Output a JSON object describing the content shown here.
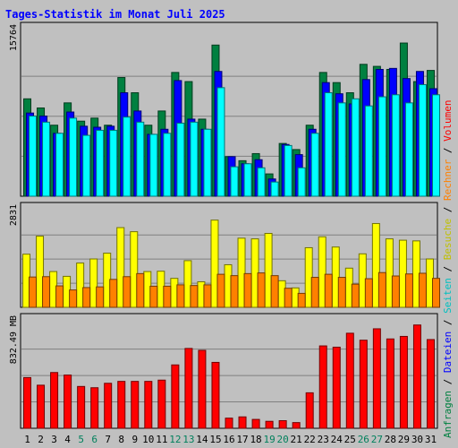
{
  "chart_data": {
    "type": "bar",
    "title": "Tages-Statistik im Monat Juli 2025",
    "days": [
      "1",
      "2",
      "3",
      "4",
      "5",
      "6",
      "7",
      "8",
      "9",
      "10",
      "11",
      "12",
      "13",
      "14",
      "15",
      "16",
      "17",
      "18",
      "19",
      "20",
      "21",
      "22",
      "23",
      "24",
      "25",
      "26",
      "27",
      "28",
      "29",
      "30",
      "31"
    ],
    "weekend_days": [
      "5",
      "6",
      "12",
      "13",
      "19",
      "20",
      "26",
      "27"
    ],
    "colors": {
      "anfragen": "#008040",
      "dateien": "#0000ff",
      "seiten": "#00ffff",
      "besuche": "#ffff00",
      "rechner": "#ff8000",
      "volumen": "#ff0000",
      "title": "#0000ff",
      "weekend": "#00805c"
    },
    "panels": [
      {
        "max_label": "15764",
        "ymax": 15764,
        "series": [
          {
            "name": "Anfragen",
            "values": [
              9600,
              8700,
              7000,
              9200,
              7400,
              7700,
              7000,
              11700,
              10200,
              7000,
              8400,
              12200,
              11300,
              7600,
              14900,
              3900,
              3500,
              4200,
              2200,
              5200,
              4600,
              7000,
              12200,
              11200,
              10200,
              13000,
              12800,
              12500,
              15100,
              11300,
              12400
            ]
          },
          {
            "name": "Dateien",
            "values": [
              8200,
              7900,
              6200,
              8300,
              6900,
              6800,
              6900,
              10200,
              8400,
              6100,
              6600,
              11400,
              7600,
              6600,
              12300,
              3900,
              3200,
              3600,
              1700,
              5100,
              4100,
              6600,
              11200,
              10100,
              9100,
              11500,
              12500,
              12600,
              11600,
              12300,
              10600
            ]
          },
          {
            "name": "Seiten",
            "values": [
              7900,
              7300,
              6200,
              7700,
              6000,
              6500,
              6500,
              7800,
              7300,
              6100,
              6200,
              7200,
              7300,
              6600,
              10700,
              2900,
              3200,
              2800,
              1400,
              5000,
              2800,
              6200,
              10200,
              9200,
              9600,
              8900,
              9800,
              10000,
              9200,
              11000,
              10000
            ]
          }
        ]
      },
      {
        "max_label": "2831",
        "ymax": 2831,
        "series": [
          {
            "name": "Besuche",
            "values": [
              1560,
              2090,
              1050,
              910,
              1300,
              1420,
              1590,
              2340,
              2220,
              1050,
              1060,
              850,
              1370,
              750,
              2560,
              1250,
              2030,
              2010,
              2170,
              780,
              570,
              1750,
              2070,
              1770,
              1150,
              1570,
              2460,
              2010,
              1970,
              1950,
              1420
            ]
          },
          {
            "name": "Rechner",
            "values": [
              890,
              900,
              630,
              510,
              580,
              600,
              820,
              900,
              990,
              620,
              620,
              660,
              640,
              660,
              970,
              930,
              990,
              1010,
              930,
              560,
              410,
              880,
              970,
              880,
              680,
              840,
              1020,
              920,
              980,
              1000,
              850
            ]
          }
        ]
      },
      {
        "max_label": "832.49 MB",
        "ymax": 832.49,
        "series": [
          {
            "name": "Volumen",
            "values": [
              400,
              340,
              440,
              420,
              330,
              320,
              355,
              370,
              370,
              370,
              380,
              500,
              630,
              615,
              520,
              80,
              90,
              70,
              55,
              60,
              45,
              280,
              650,
              640,
              750,
              695,
              785,
              705,
              725,
              815,
              700
            ]
          }
        ]
      }
    ],
    "side_legend": [
      {
        "text": "Anfragen",
        "color": "#008040"
      },
      {
        "text": " / ",
        "color": "#000000"
      },
      {
        "text": "Dateien",
        "color": "#0000ff"
      },
      {
        "text": " / ",
        "color": "#000000"
      },
      {
        "text": "Seiten",
        "color": "#00c0c0"
      },
      {
        "text": " / ",
        "color": "#000000"
      },
      {
        "text": "Besuche",
        "color": "#c0c000"
      },
      {
        "text": " / ",
        "color": "#000000"
      },
      {
        "text": "Rechner",
        "color": "#ff8000"
      },
      {
        "text": " / ",
        "color": "#000000"
      },
      {
        "text": "Volumen",
        "color": "#ff0000"
      }
    ]
  }
}
